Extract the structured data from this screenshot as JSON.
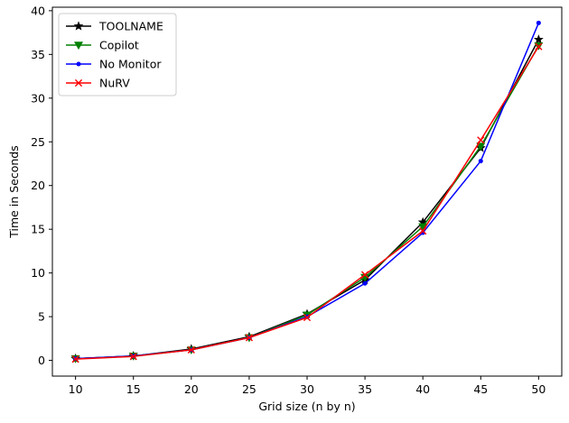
{
  "chart_data": {
    "type": "line",
    "xlabel": "Grid size (n by n)",
    "ylabel": "Time in Seconds",
    "x": [
      10,
      15,
      20,
      25,
      30,
      35,
      40,
      45,
      50
    ],
    "xticks": [
      "10",
      "15",
      "20",
      "25",
      "30",
      "35",
      "40",
      "45",
      "50"
    ],
    "yticks": [
      "0",
      "5",
      "10",
      "15",
      "20",
      "25",
      "30",
      "35",
      "40"
    ],
    "xlim": [
      8,
      52
    ],
    "ylim": [
      -1.8,
      40.4
    ],
    "grid": false,
    "legend_position": "top-left",
    "series": [
      {
        "name": "TOOLNAME",
        "color": "#000000",
        "marker": "star",
        "values": [
          0.2,
          0.5,
          1.3,
          2.7,
          5.3,
          9.2,
          15.8,
          24.3,
          36.7
        ]
      },
      {
        "name": "Copilot",
        "color": "#008000",
        "marker": "triangle-down",
        "values": [
          0.2,
          0.5,
          1.2,
          2.6,
          5.2,
          9.5,
          15.3,
          24.5,
          36.0
        ]
      },
      {
        "name": "No Monitor",
        "color": "#0000ff",
        "marker": "dot",
        "values": [
          0.2,
          0.5,
          1.2,
          2.6,
          5.0,
          8.8,
          14.6,
          22.8,
          38.6
        ]
      },
      {
        "name": "NuRV",
        "color": "#ff0000",
        "marker": "x",
        "values": [
          0.15,
          0.45,
          1.2,
          2.6,
          4.9,
          9.8,
          14.8,
          25.2,
          35.9
        ]
      }
    ]
  }
}
